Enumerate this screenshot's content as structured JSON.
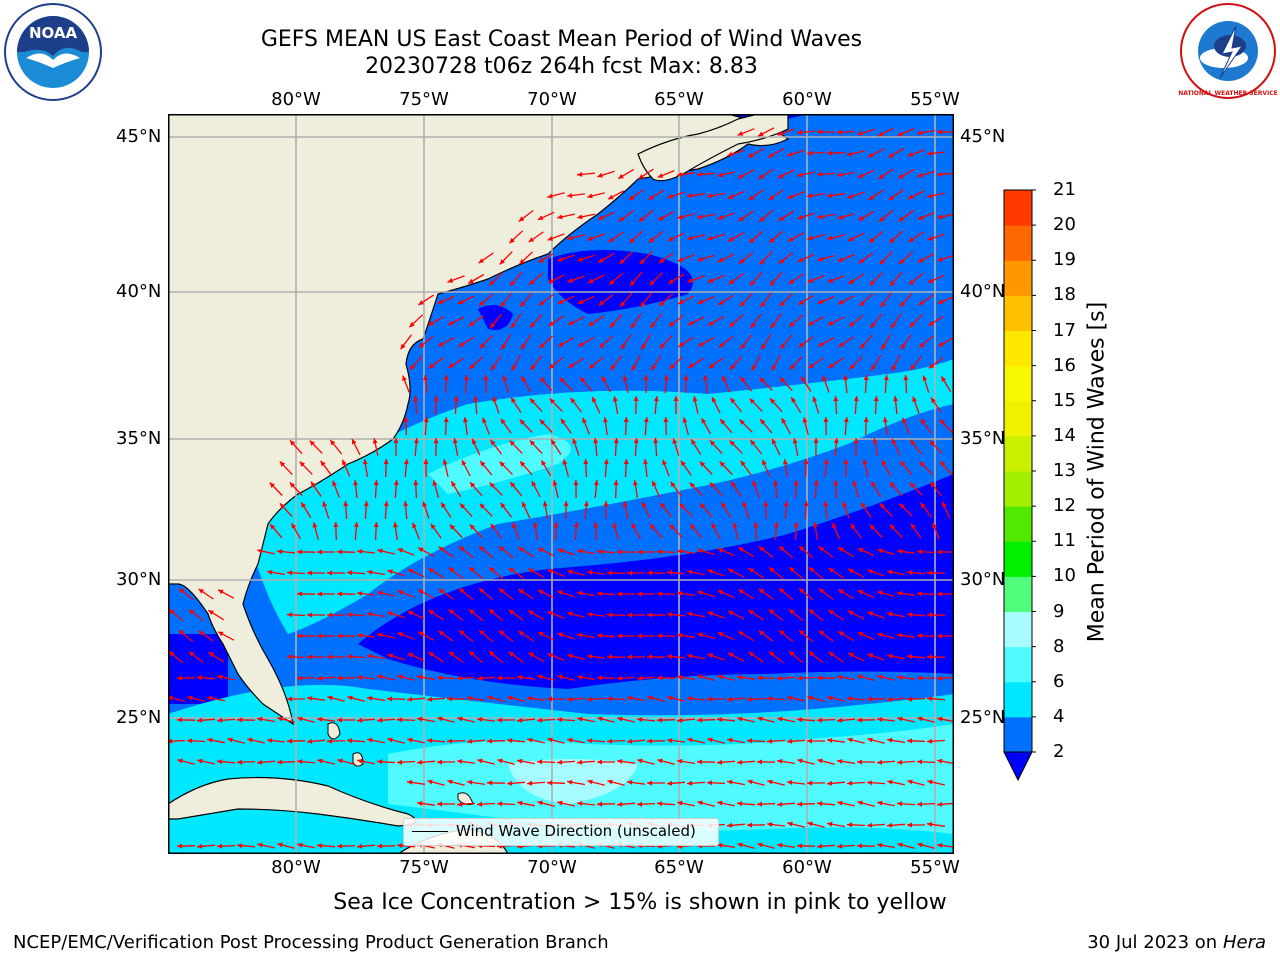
{
  "header": {
    "title_line1": "GEFS MEAN US East Coast Mean Period of Wind Waves",
    "title_line2": "20230728 t06z 264h fcst   Max: 8.83"
  },
  "logos": {
    "left": {
      "name": "noaa-logo",
      "text": "NOAA"
    },
    "right": {
      "name": "national-weather-service-logo",
      "text": "NATIONAL WEATHER SERVICE"
    }
  },
  "map": {
    "lon_labels": [
      "80°W",
      "75°W",
      "70°W",
      "65°W",
      "60°W",
      "55°W"
    ],
    "lat_labels": [
      "45°N",
      "40°N",
      "35°N",
      "30°N",
      "25°N"
    ],
    "land_color": "#efeedc",
    "grid_color": "#b0b0b0",
    "arrow_color": "#ff0000"
  },
  "legend": {
    "label": "Wind Wave Direction (unscaled)"
  },
  "colorbar": {
    "title": "Mean Period of Wind Waves [s]",
    "tick_labels": [
      "2",
      "4",
      "6",
      "8",
      "9",
      "10",
      "11",
      "12",
      "13",
      "14",
      "15",
      "16",
      "17",
      "18",
      "19",
      "20",
      "21"
    ],
    "colors": [
      "#0070ff",
      "#00e8ff",
      "#4ffbff",
      "#a6fcff",
      "#50fc7c",
      "#00f000",
      "#52e800",
      "#a2f000",
      "#c8f000",
      "#f0f000",
      "#f8f800",
      "#ffe800",
      "#ffc000",
      "#ff9800",
      "#ff6800",
      "#ff3800",
      "#ff0000"
    ],
    "under_color": "#0000ff"
  },
  "period_colors": {
    "p_lt2": "#0000ff",
    "p_2_4": "#0070ff",
    "p_4_6": "#00e8ff",
    "p_6_8": "#4ffbff",
    "p_8_9": "#a6fcff"
  },
  "notes": {
    "sea_ice": "Sea Ice Concentration > 15% is shown in pink to yellow"
  },
  "footer": {
    "left": "NCEP/EMC/Verification Post Processing Product Generation Branch",
    "right_date": "30 Jul 2023 on ",
    "right_machine": "Hera"
  }
}
